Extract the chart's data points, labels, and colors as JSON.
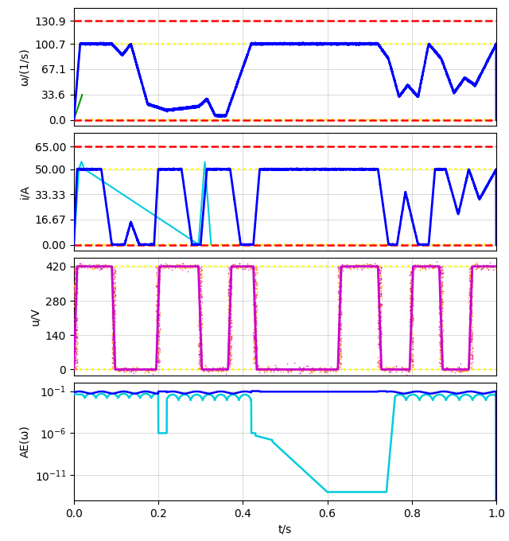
{
  "xlabel": "t/s",
  "subplot1_ylabel": "ω/(1/s)",
  "subplot2_ylabel": "i/A",
  "subplot3_ylabel": "u/V",
  "subplot4_ylabel": "AE(ω)",
  "xlim": [
    0.0,
    1.0
  ],
  "subplot1_ylim": [
    -8,
    148
  ],
  "subplot1_yticks": [
    0.0,
    33.6,
    67.1,
    100.7,
    130.9
  ],
  "subplot2_ylim": [
    -4,
    74
  ],
  "subplot2_yticks": [
    0.0,
    16.67,
    33.33,
    50.0,
    65.0
  ],
  "subplot3_ylim": [
    -25,
    455
  ],
  "subplot3_yticks": [
    0,
    140,
    280,
    420
  ],
  "color_blue": "#0000ff",
  "color_cyan": "#00ccdd",
  "color_green": "#009900",
  "color_red": "#ff0000",
  "color_yellow": "#ffff00",
  "color_magenta": "#cc00cc",
  "color_orange": "#ff8800"
}
